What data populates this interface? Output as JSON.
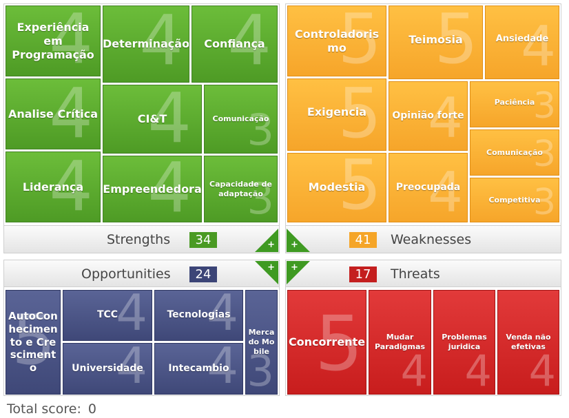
{
  "strengths": {
    "label": "Strengths",
    "count": "34",
    "count_color": "#4a9a23",
    "items": [
      {
        "name": "Experiência em Programação",
        "score": "4"
      },
      {
        "name": "Determinação",
        "score": "4"
      },
      {
        "name": "Confiança",
        "score": "4"
      },
      {
        "name": "Analise Crítica",
        "score": "4"
      },
      {
        "name": "CI&T",
        "score": "4"
      },
      {
        "name": "Comunicação",
        "score": "3"
      },
      {
        "name": "Liderança",
        "score": "4"
      },
      {
        "name": "Empreendedora",
        "score": "4"
      },
      {
        "name": "Capacidade de adaptação",
        "score": "3"
      }
    ]
  },
  "weaknesses": {
    "label": "Weaknesses",
    "count": "41",
    "count_color": "#f5a528",
    "items": [
      {
        "name": "Controladorismo",
        "score": "5"
      },
      {
        "name": "Teimosia",
        "score": "5"
      },
      {
        "name": "Ansiedade",
        "score": "4"
      },
      {
        "name": "Exigencia",
        "score": "5"
      },
      {
        "name": "Opinião forte",
        "score": "4"
      },
      {
        "name": "Paciência",
        "score": "3"
      },
      {
        "name": "Comunicação",
        "score": "3"
      },
      {
        "name": "Modestia",
        "score": "5"
      },
      {
        "name": "Preocupada",
        "score": "4"
      },
      {
        "name": "Competitiva",
        "score": "3"
      }
    ]
  },
  "opportunities": {
    "label": "Opportunities",
    "count": "24",
    "count_color": "#3c4577",
    "items": [
      {
        "name": "AutoConhecimento e Crescimento",
        "score": "5"
      },
      {
        "name": "TCC",
        "score": "4"
      },
      {
        "name": "Tecnologias",
        "score": "4"
      },
      {
        "name": "Universidade",
        "score": "4"
      },
      {
        "name": "Intecambio",
        "score": "4"
      },
      {
        "name": "Mercado Mobile",
        "score": "3"
      }
    ]
  },
  "threats": {
    "label": "Threats",
    "count": "17",
    "count_color": "#c41f1f",
    "items": [
      {
        "name": "Concorrente",
        "score": "5"
      },
      {
        "name": "Mudar Paradigmas",
        "score": "4"
      },
      {
        "name": "Problemas juridica",
        "score": "4"
      },
      {
        "name": "Venda não efetivas",
        "score": "4"
      }
    ]
  },
  "add_symbol": "+",
  "footer": {
    "label": "Total score:",
    "value": "0"
  }
}
